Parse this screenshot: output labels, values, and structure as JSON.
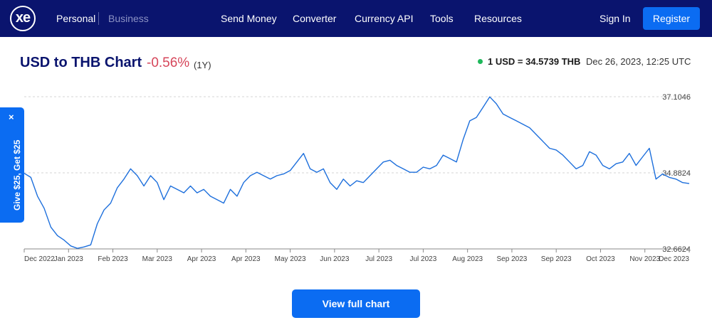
{
  "nav": {
    "logo": "xe",
    "personal": "Personal",
    "business": "Business",
    "links": [
      "Send Money",
      "Converter",
      "Currency API",
      "Tools",
      "Resources"
    ],
    "sign_in": "Sign In",
    "register": "Register"
  },
  "header": {
    "title": "USD to THB Chart",
    "change": "-0.56%",
    "period": "(1Y)",
    "rate": "1 USD = 34.5739 THB",
    "timestamp": "Dec 26, 2023, 12:25 UTC"
  },
  "promo": {
    "text": "Give $25, Get $25",
    "close": "×"
  },
  "cta": {
    "view_full_chart": "View full chart"
  },
  "colors": {
    "nav_bg": "#0a146e",
    "accent": "#0b6cf2",
    "line": "#1d6fdc",
    "negative": "#d6465a",
    "live": "#1eb85a"
  },
  "chart_data": {
    "type": "line",
    "ylim": [
      32.6624,
      37.1046
    ],
    "y_ticks": [
      "37.1046",
      "34.8824",
      "32.6624"
    ],
    "x_ticks": [
      "Dec 2022",
      "Jan 2023",
      "Feb 2023",
      "Mar 2023",
      "Apr 2023",
      "Apr 2023",
      "May 2023",
      "Jun 2023",
      "Jul 2023",
      "Jul 2023",
      "Aug 2023",
      "Sep 2023",
      "Sep 2023",
      "Oct 2023",
      "Nov 2023",
      "Dec 2023"
    ],
    "grid": true,
    "series": [
      {
        "x": [
          0,
          1,
          2,
          3,
          4,
          5,
          6,
          7,
          8,
          9,
          10,
          11,
          12,
          13,
          14,
          15,
          16,
          17,
          18,
          19,
          20,
          21,
          22,
          23,
          24,
          25,
          26,
          27,
          28,
          29,
          30,
          31,
          32,
          33,
          34,
          35,
          36,
          37,
          38,
          39,
          40,
          41,
          42,
          43,
          44,
          45,
          46,
          47,
          48,
          49,
          50,
          51,
          52,
          53,
          54,
          55,
          56,
          57,
          58,
          59,
          60,
          61,
          62,
          63,
          64,
          65,
          66,
          67,
          68,
          69,
          70,
          71,
          72,
          73,
          74,
          75,
          76,
          77,
          78,
          79,
          80,
          81,
          82,
          83,
          84,
          85,
          86,
          87,
          88,
          89,
          90,
          91,
          92,
          93,
          94,
          95,
          96,
          97,
          98,
          99,
          100
        ],
        "y": [
          34.87,
          34.75,
          34.2,
          33.85,
          33.3,
          33.05,
          32.92,
          32.75,
          32.68,
          32.72,
          32.78,
          33.4,
          33.8,
          34.0,
          34.45,
          34.7,
          35.0,
          34.8,
          34.5,
          34.8,
          34.6,
          34.1,
          34.5,
          34.4,
          34.3,
          34.5,
          34.3,
          34.4,
          34.2,
          34.1,
          34.0,
          34.4,
          34.2,
          34.6,
          34.8,
          34.9,
          34.8,
          34.7,
          34.8,
          34.85,
          34.95,
          35.2,
          35.45,
          35.0,
          34.9,
          35.0,
          34.6,
          34.4,
          34.7,
          34.5,
          34.65,
          34.6,
          34.8,
          35.0,
          35.2,
          35.25,
          35.1,
          35.0,
          34.9,
          34.9,
          35.05,
          35.0,
          35.1,
          35.4,
          35.3,
          35.2,
          35.85,
          36.4,
          36.5,
          36.8,
          37.1,
          36.9,
          36.6,
          36.5,
          36.4,
          36.3,
          36.2,
          36.0,
          35.8,
          35.6,
          35.55,
          35.4,
          35.2,
          35.0,
          35.1,
          35.5,
          35.4,
          35.1,
          35.0,
          35.15,
          35.2,
          35.45,
          35.1,
          35.35,
          35.6,
          34.7,
          34.85,
          34.75,
          34.7,
          34.6,
          34.57
        ]
      }
    ]
  }
}
